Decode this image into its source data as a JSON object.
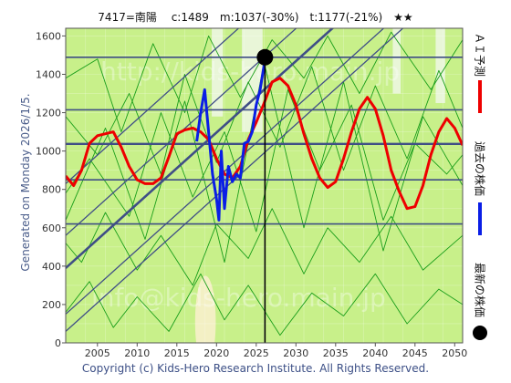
{
  "header": {
    "title": "7417=南陽　 c:1489　m:1037(-30%)　t:1177(-21%)　★★"
  },
  "side_caption": "Generated on Monday 2026/1/5.",
  "footer": {
    "copyright": "Copyright (c) Kids-Hero Research Institute. All Rights Reserved."
  },
  "watermarks": {
    "top": "http://kids-hero.main.jp",
    "bottom": "info@kids-hero.main.jp"
  },
  "legend": {
    "latest": "最新の株価",
    "past": "過去の株価",
    "forecast": "ＡＩ予測"
  },
  "colors": {
    "plot_bg": "#c8f08a",
    "grid": "#ffffff",
    "band_line": "#3f4e86",
    "cycle_line": "#1a9e1a",
    "forecast": "#ee0000",
    "past": "#0a1ee6",
    "latest": "#000000",
    "light_patch": "#e9f6d8",
    "cream_patch": "#f3f0c4"
  },
  "chart_data": {
    "type": "line",
    "xlim": [
      2001,
      2051
    ],
    "ylim": [
      0,
      1640
    ],
    "x_ticks": [
      2005,
      2010,
      2015,
      2020,
      2025,
      2030,
      2035,
      2040,
      2045,
      2050
    ],
    "y_ticks": [
      0,
      200,
      400,
      600,
      800,
      1000,
      1200,
      1400,
      1600
    ],
    "latest_point": {
      "x": 2026.1,
      "y": 1489
    },
    "horizontal_levels": [
      620,
      850,
      1037,
      1215,
      1489
    ],
    "channel_lines": [
      {
        "x": [
          2001,
          2051
        ],
        "y": [
          390,
          2250
        ],
        "bold": true
      },
      {
        "x": [
          2001,
          2051
        ],
        "y": [
          830,
          2690
        ],
        "bold": false
      },
      {
        "x": [
          2001,
          2051
        ],
        "y": [
          560,
          2420
        ],
        "bold": false
      },
      {
        "x": [
          2001,
          2051
        ],
        "y": [
          150,
          2010
        ],
        "bold": false
      },
      {
        "x": [
          2001,
          2051
        ],
        "y": [
          60,
          1920
        ],
        "bold": false
      }
    ],
    "series": [
      {
        "name": "ＡＩ予測",
        "x": [
          2001,
          2002,
          2003,
          2004,
          2005,
          2006,
          2007,
          2008,
          2009,
          2010,
          2011,
          2012,
          2013,
          2014,
          2015,
          2016,
          2017,
          2018,
          2019,
          2020,
          2021,
          2022,
          2023,
          2024,
          2025,
          2026,
          2027,
          2028,
          2029,
          2030,
          2031,
          2032,
          2033,
          2034,
          2035,
          2036,
          2037,
          2038,
          2039,
          2040,
          2041,
          2042,
          2043,
          2044,
          2045,
          2046,
          2047,
          2048,
          2049,
          2050,
          2051
        ],
        "y": [
          870,
          820,
          900,
          1040,
          1080,
          1090,
          1100,
          1020,
          920,
          850,
          830,
          830,
          860,
          970,
          1090,
          1110,
          1120,
          1100,
          1060,
          960,
          880,
          860,
          920,
          1060,
          1150,
          1250,
          1360,
          1380,
          1340,
          1240,
          1090,
          960,
          860,
          810,
          840,
          960,
          1100,
          1220,
          1280,
          1220,
          1080,
          900,
          790,
          700,
          710,
          820,
          980,
          1100,
          1170,
          1120,
          1030
        ]
      },
      {
        "name": "過去の株価",
        "x": [
          2017.5,
          2018,
          2018.5,
          2019,
          2019.5,
          2020,
          2020.3,
          2020.6,
          2021,
          2021.5,
          2022,
          2022.5,
          2023,
          2023.5,
          2024,
          2024.5,
          2025,
          2025.5,
          2026
        ],
        "y": [
          1050,
          1200,
          1320,
          1100,
          880,
          750,
          640,
          1000,
          700,
          920,
          840,
          880,
          860,
          1040,
          1050,
          1100,
          1240,
          1320,
          1450
        ]
      }
    ],
    "cycle_lines": [
      {
        "x": [
          2001,
          2006,
          2011,
          2016,
          2021,
          2026,
          2031,
          2036,
          2041,
          2046,
          2051
        ],
        "y": [
          640,
          1120,
          540,
          1260,
          420,
          1460,
          600,
          1360,
          480,
          1180,
          820
        ]
      },
      {
        "x": [
          2001,
          2004,
          2009,
          2013,
          2017,
          2021,
          2025,
          2029,
          2033,
          2037,
          2041,
          2045,
          2049,
          2051
        ],
        "y": [
          780,
          960,
          660,
          1200,
          760,
          1100,
          580,
          1320,
          900,
          1240,
          640,
          1040,
          880,
          980
        ]
      },
      {
        "x": [
          2001,
          2005,
          2008,
          2012,
          2016,
          2019,
          2023,
          2027,
          2031,
          2034,
          2038,
          2042,
          2047,
          2051
        ],
        "y": [
          1380,
          1480,
          1100,
          1560,
          1200,
          1600,
          1280,
          1580,
          1380,
          1600,
          1300,
          1620,
          1320,
          1580
        ]
      },
      {
        "x": [
          2001,
          2004,
          2007,
          2010,
          2014,
          2018,
          2021,
          2024,
          2028,
          2032,
          2036,
          2040,
          2044,
          2048,
          2051
        ],
        "y": [
          160,
          320,
          80,
          240,
          60,
          360,
          120,
          300,
          40,
          260,
          140,
          360,
          100,
          280,
          200
        ]
      },
      {
        "x": [
          2001,
          2003,
          2006,
          2010,
          2013,
          2017,
          2020,
          2024,
          2027,
          2031,
          2034,
          2038,
          2042,
          2046,
          2051
        ],
        "y": [
          520,
          420,
          680,
          380,
          560,
          300,
          620,
          440,
          700,
          360,
          600,
          420,
          660,
          380,
          560
        ]
      },
      {
        "x": [
          2001,
          2005,
          2009,
          2013,
          2016,
          2020,
          2024,
          2028,
          2032,
          2036,
          2040,
          2044,
          2048,
          2051
        ],
        "y": [
          1180,
          980,
          1300,
          880,
          1400,
          940,
          1360,
          1020,
          1440,
          900,
          1340,
          960,
          1420,
          1120
        ]
      }
    ]
  }
}
